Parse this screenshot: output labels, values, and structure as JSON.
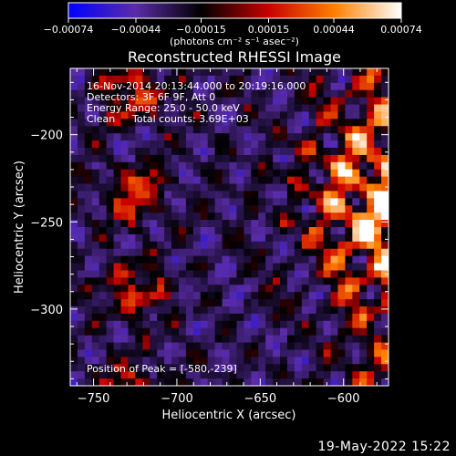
{
  "chart_data": {
    "type": "heatmap",
    "title": "Reconstructed RHESSI Image",
    "xlabel": "Heliocentric X (arcsec)",
    "ylabel": "Heliocentric Y (arcsec)",
    "xlim": [
      -764,
      -573
    ],
    "ylim": [
      -344,
      -162
    ],
    "x_ticks": [
      -750,
      -700,
      -650,
      -600
    ],
    "x_tick_labels": [
      "−750",
      "−700",
      "−650",
      "−600"
    ],
    "y_ticks": [
      -200,
      -250,
      -300
    ],
    "y_tick_labels": [
      "−200",
      "−250",
      "−300"
    ],
    "colorbar": {
      "range": [
        -0.00074,
        0.00074
      ],
      "tick_values": [
        -0.00074,
        -0.00044,
        -0.00015,
        0.00015,
        0.00044,
        0.00074
      ],
      "tick_labels": [
        "−0.00074",
        "−0.00044",
        "−0.00015",
        "0.00015",
        "0.00044",
        "0.00074"
      ],
      "units": "(photons cm⁻² s⁻¹ asec⁻²)",
      "colors": [
        "#0000ff",
        "#5a2ca8",
        "#000000",
        "#c80000",
        "#ff8000",
        "#ffffff"
      ]
    },
    "annotations": {
      "time_range": "16-Nov-2014 20:13:44.000 to 20:19:16.000",
      "detectors": "Detectors: 3F 6F 9F, Att 0",
      "energy": "Energy Range: 25.0 - 50.0 keV",
      "clean": "Clean",
      "counts": "Total counts: 3.69E+03",
      "peak": "Position of Peak = [-580,-239]"
    },
    "peak": {
      "x": -580,
      "y": -239
    },
    "grid": false
  },
  "footer": {
    "date": "19-May-2022 15:22"
  }
}
